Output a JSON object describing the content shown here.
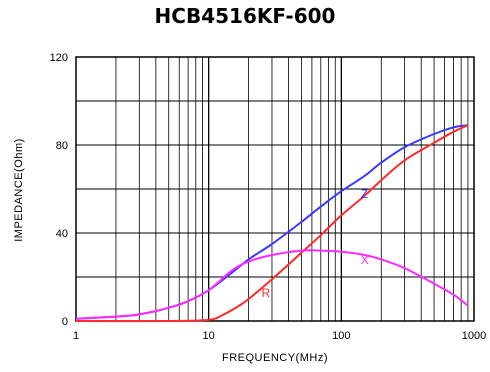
{
  "chart_data": {
    "type": "line",
    "title": "HCB4516KF-600",
    "xlabel": "FREQUENCY(MHz)",
    "ylabel": "IMPEDANCE(Ohm)",
    "x_scale": "log",
    "xlim": [
      1,
      1000
    ],
    "ylim": [
      0,
      120
    ],
    "x_ticks": [
      "1",
      "10",
      "100",
      "1000"
    ],
    "y_ticks": [
      "0",
      "40",
      "80",
      "120"
    ],
    "grid": true,
    "series": [
      {
        "name": "Z",
        "color": "#3a3aff",
        "points": [
          [
            1,
            1
          ],
          [
            2,
            2
          ],
          [
            3,
            3
          ],
          [
            5,
            6
          ],
          [
            7,
            9
          ],
          [
            10,
            14
          ],
          [
            15,
            22
          ],
          [
            20,
            28
          ],
          [
            30,
            35
          ],
          [
            50,
            45
          ],
          [
            70,
            52
          ],
          [
            100,
            59
          ],
          [
            150,
            66
          ],
          [
            200,
            72
          ],
          [
            300,
            79
          ],
          [
            500,
            85
          ],
          [
            700,
            88
          ],
          [
            900,
            89
          ]
        ]
      },
      {
        "name": "R",
        "color": "#ff2a2a",
        "points": [
          [
            1,
            0
          ],
          [
            5,
            0
          ],
          [
            10,
            0.5
          ],
          [
            13,
            3
          ],
          [
            17,
            7
          ],
          [
            20,
            10
          ],
          [
            30,
            19
          ],
          [
            50,
            31
          ],
          [
            70,
            39
          ],
          [
            100,
            48
          ],
          [
            150,
            57
          ],
          [
            200,
            64
          ],
          [
            300,
            73
          ],
          [
            500,
            81
          ],
          [
            700,
            86
          ],
          [
            900,
            89
          ]
        ]
      },
      {
        "name": "X",
        "color": "#ff2aff",
        "points": [
          [
            1,
            1
          ],
          [
            2,
            2
          ],
          [
            3,
            3
          ],
          [
            5,
            6
          ],
          [
            7,
            9
          ],
          [
            10,
            14
          ],
          [
            15,
            23
          ],
          [
            20,
            27
          ],
          [
            30,
            30
          ],
          [
            50,
            32
          ],
          [
            70,
            32
          ],
          [
            100,
            31.5
          ],
          [
            150,
            30
          ],
          [
            200,
            28
          ],
          [
            300,
            24
          ],
          [
            500,
            17
          ],
          [
            700,
            12
          ],
          [
            900,
            7
          ]
        ]
      }
    ],
    "series_label_positions": {
      "Z": [
        140,
        56
      ],
      "R": [
        25,
        11
      ],
      "X": [
        140,
        26
      ]
    }
  }
}
